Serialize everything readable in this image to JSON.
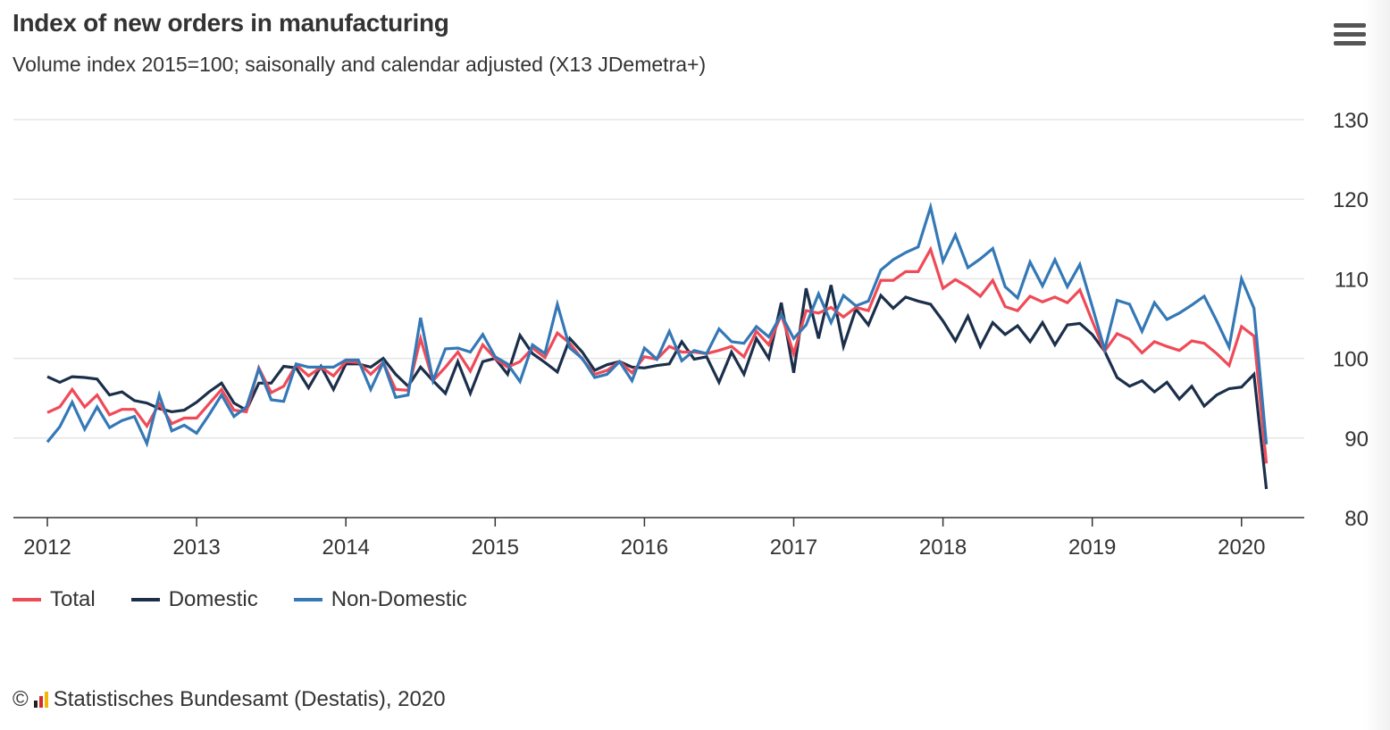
{
  "header": {
    "title": "Index of new orders in manufacturing",
    "subtitle": "Volume index 2015=100; saisonally and calendar adjusted (X13 JDemetra+)",
    "menu_icon": "hamburger-menu-icon"
  },
  "credits": {
    "symbol": "©",
    "logo": "Destatis",
    "text": "Statistisches Bundesamt (Destatis), 2020"
  },
  "chart_data": {
    "type": "line",
    "title": "Index of new orders in manufacturing",
    "subtitle": "Volume index 2015=100; saisonally and calendar adjusted (X13 JDemetra+)",
    "x_start": "2012-01",
    "frequency": "monthly",
    "x_tick_labels": [
      "2012",
      "2013",
      "2014",
      "2015",
      "2016",
      "2017",
      "2018",
      "2019",
      "2020"
    ],
    "y_tick_labels": [
      "80",
      "90",
      "100",
      "110",
      "120",
      "130"
    ],
    "ylim": [
      80,
      130
    ],
    "y_axis_side": "right",
    "grid": true,
    "legend_position": "bottom-left",
    "series": [
      {
        "name": "Total",
        "color": "#ef4a57",
        "values": [
          93.2,
          93.9,
          96.1,
          93.9,
          95.4,
          92.9,
          93.6,
          93.6,
          91.5,
          94.3,
          91.8,
          92.5,
          92.5,
          94.3,
          96.1,
          93.5,
          93.3,
          98.8,
          95.7,
          96.5,
          99.2,
          97.8,
          98.9,
          97.8,
          99.6,
          99.5,
          98.0,
          99.5,
          96.1,
          96.0,
          102.5,
          97.2,
          98.9,
          100.8,
          98.4,
          101.7,
          100.0,
          98.9,
          99.6,
          101.3,
          100.1,
          103.2,
          101.9,
          99.9,
          98.0,
          98.5,
          99.6,
          98.2,
          100.2,
          99.9,
          101.5,
          100.8,
          100.8,
          100.6,
          101.0,
          101.5,
          100.2,
          103.4,
          101.7,
          105.5,
          100.6,
          106.0,
          105.7,
          106.4,
          105.2,
          106.4,
          106.0,
          109.8,
          109.8,
          110.9,
          110.9,
          113.7,
          108.8,
          109.9,
          109.0,
          107.8,
          109.8,
          106.5,
          106.0,
          107.8,
          107.1,
          107.7,
          107.0,
          108.6,
          104.7,
          100.9,
          103.1,
          102.4,
          100.7,
          102.1,
          101.5,
          101.0,
          102.2,
          101.9,
          100.6,
          99.1,
          104.0,
          102.8,
          86.8
        ]
      },
      {
        "name": "Domestic",
        "color": "#1b2f4b",
        "values": [
          97.7,
          97.0,
          97.7,
          97.6,
          97.4,
          95.4,
          95.8,
          94.7,
          94.4,
          93.7,
          93.3,
          93.5,
          94.5,
          95.8,
          96.9,
          94.4,
          93.5,
          96.9,
          96.9,
          99.0,
          98.8,
          96.3,
          99.0,
          96.1,
          99.3,
          99.3,
          98.9,
          100.0,
          98.0,
          96.5,
          98.9,
          97.2,
          95.6,
          99.6,
          95.6,
          99.6,
          100.0,
          98.0,
          102.9,
          100.6,
          99.5,
          98.3,
          102.5,
          100.8,
          98.5,
          99.2,
          99.6,
          98.9,
          98.8,
          99.1,
          99.3,
          102.1,
          99.9,
          100.2,
          97.0,
          100.8,
          98.0,
          102.5,
          100.0,
          107.0,
          98.2,
          108.8,
          102.5,
          109.2,
          101.5,
          106.2,
          104.2,
          107.9,
          106.3,
          107.7,
          107.2,
          106.8,
          104.7,
          102.2,
          105.3,
          101.5,
          104.5,
          103.0,
          104.1,
          102.1,
          104.5,
          101.7,
          104.2,
          104.4,
          103.0,
          100.9,
          97.6,
          96.5,
          97.2,
          95.8,
          97.0,
          94.9,
          96.5,
          94.0,
          95.4,
          96.2,
          96.4,
          98.0,
          83.6
        ]
      },
      {
        "name": "Non-Domestic",
        "color": "#3478b6",
        "values": [
          89.5,
          91.4,
          94.5,
          91.1,
          93.9,
          91.3,
          92.2,
          92.7,
          89.3,
          95.4,
          90.9,
          91.6,
          90.6,
          92.9,
          95.4,
          92.7,
          93.9,
          98.7,
          94.8,
          94.6,
          99.3,
          98.9,
          98.9,
          98.9,
          99.8,
          99.8,
          96.1,
          99.5,
          95.1,
          95.4,
          105.1,
          97.2,
          101.2,
          101.3,
          100.8,
          103.0,
          100.2,
          99.3,
          97.1,
          101.7,
          100.6,
          106.8,
          101.3,
          100.0,
          97.6,
          98.0,
          99.6,
          97.2,
          101.3,
          99.9,
          103.4,
          99.7,
          101.0,
          100.6,
          103.7,
          102.1,
          101.9,
          104.0,
          102.7,
          105.5,
          102.5,
          104.2,
          108.1,
          104.5,
          107.9,
          106.6,
          107.2,
          111.1,
          112.4,
          113.3,
          114.0,
          119.0,
          112.2,
          115.5,
          111.4,
          112.5,
          113.8,
          109.0,
          107.6,
          112.1,
          109.1,
          112.4,
          109.0,
          111.8,
          106.5,
          101.1,
          107.3,
          106.8,
          103.4,
          107.0,
          104.9,
          105.7,
          106.7,
          107.8,
          104.7,
          101.4,
          110.0,
          106.3,
          89.2
        ]
      }
    ]
  }
}
